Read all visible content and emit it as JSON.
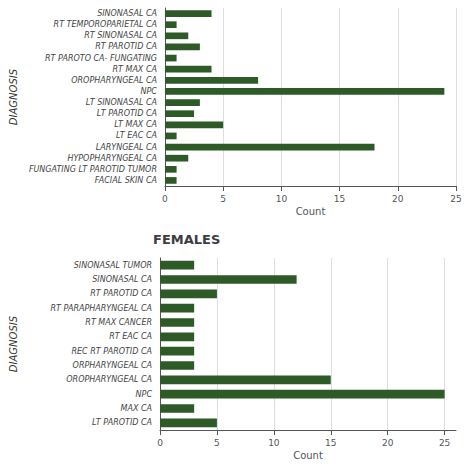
{
  "chart_data": [
    {
      "type": "bar",
      "orientation": "horizontal",
      "categories": [
        "SINONASAL CA",
        "RT TEMPOROPARIETAL CA",
        "RT SINONASAL CA",
        "RT PAROTID CA",
        "RT PAROTO CA- FUNGATING",
        "RT MAX CA",
        "OROPHARYNGEAL CA",
        "NPC",
        "LT SINONASAL CA",
        "LT PAROTID CA",
        "LT MAX CA",
        "LT EAC CA",
        "LARYNGEAL CA",
        "HYPOPHARYNGEAL CA",
        "FUNGATING LT PAROTID TUMOR",
        "FACIAL SKIN CA"
      ],
      "values": [
        4,
        1,
        2,
        3,
        1,
        4,
        8,
        24,
        3,
        2.5,
        5,
        1,
        18,
        2,
        1,
        1
      ],
      "color": "#2d5a27",
      "xlabel": "Count",
      "ylabel": "DIAGNOSIS",
      "xlim": [
        0,
        25
      ],
      "xticks": [
        0,
        5,
        10,
        15,
        20,
        25
      ],
      "grid": true
    },
    {
      "type": "bar",
      "orientation": "horizontal",
      "title": "FEMALES",
      "categories": [
        "SINONASAL TUMOR",
        "SINONASAL CA",
        "RT PAROTID CA",
        "RT PARAPHARYNGEAL CA",
        "RT MAX CANCER",
        "RT EAC CA",
        "REC RT PAROTID CA",
        "ORPHARYNGEAL CA",
        "OROPHARYNGEAL CA",
        "NPC",
        "MAX CA",
        "LT PAROTID CA"
      ],
      "values": [
        3,
        12,
        5,
        3,
        3,
        3,
        3,
        3,
        15,
        25,
        3,
        5
      ],
      "color": "#2d5a27",
      "xlabel": "Count",
      "ylabel": "DIAGNOSIS",
      "xlim": [
        0,
        26
      ],
      "xticks": [
        0,
        5,
        10,
        15,
        20,
        25
      ],
      "grid": true
    }
  ]
}
